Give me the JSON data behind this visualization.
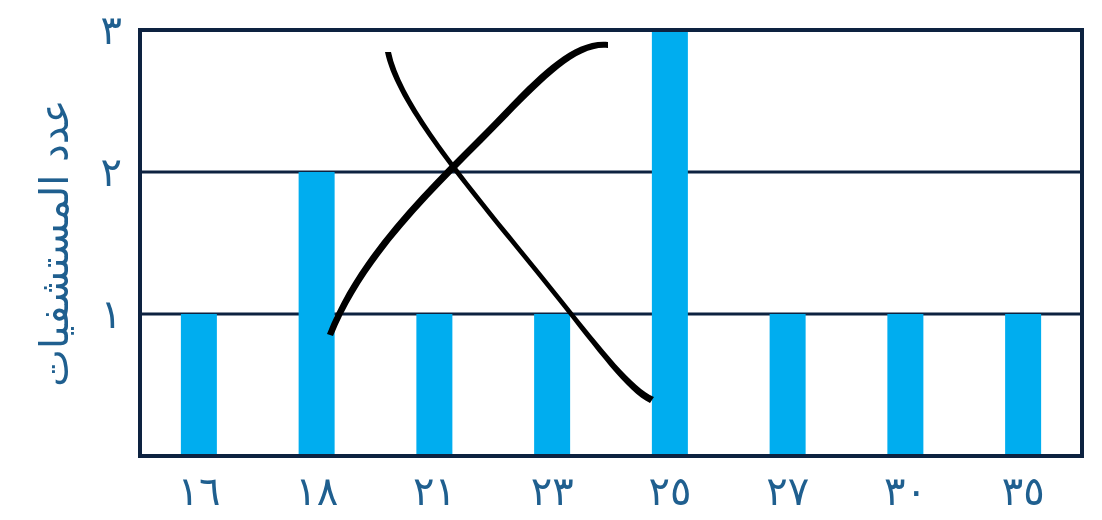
{
  "chart_data": {
    "type": "bar",
    "ylabel": "عدد المستشفيات",
    "categories": [
      "١٦",
      "١٨",
      "٢١",
      "٢٣",
      "٢٥",
      "٢٧",
      "٣٠",
      "٣٥"
    ],
    "values": [
      1,
      2,
      1,
      1,
      3,
      1,
      1,
      1
    ],
    "color": "#00adef",
    "ylim": [
      0,
      3
    ],
    "yticks": [
      {
        "value": 1,
        "label": "١"
      },
      {
        "value": 2,
        "label": "٢"
      },
      {
        "value": 3,
        "label": "٣"
      }
    ],
    "grid": "y"
  }
}
